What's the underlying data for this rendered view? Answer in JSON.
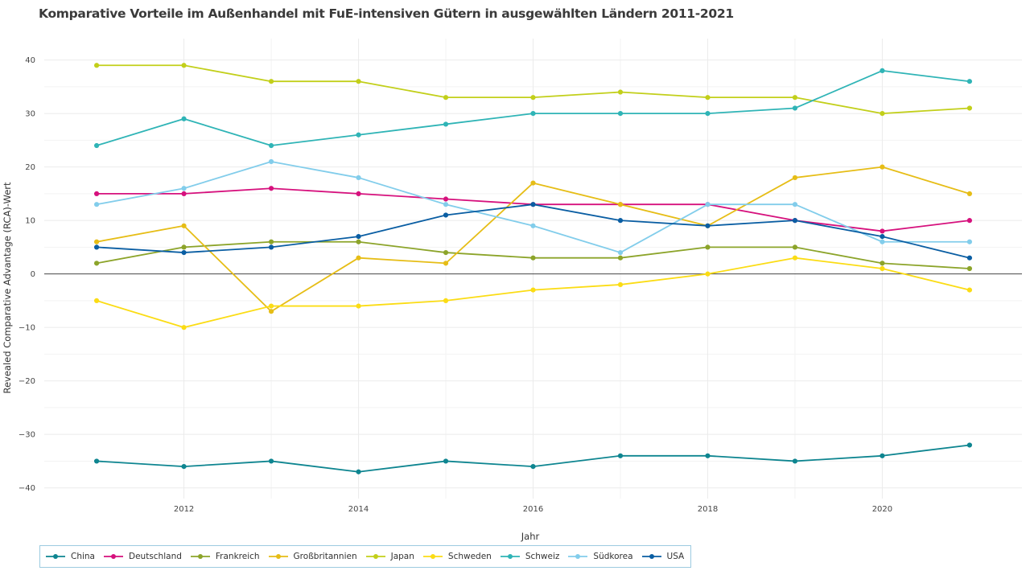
{
  "chart_data": {
    "type": "line",
    "title": "Komparative Vorteile im Außenhandel mit FuE-intensiven Gütern in ausgewählten Ländern 2011-2021",
    "xlabel": "Jahr",
    "ylabel": "Revealed Comparative Advantage (RCA)-Wert",
    "x": [
      2011,
      2012,
      2013,
      2014,
      2015,
      2016,
      2017,
      2018,
      2019,
      2020,
      2021
    ],
    "xlim": [
      2010.4,
      2021.6
    ],
    "ylim": [
      -42,
      44
    ],
    "xticks": [
      2012,
      2014,
      2016,
      2018,
      2020
    ],
    "yticks": [
      -40,
      -30,
      -20,
      -10,
      0,
      10,
      20,
      30,
      40
    ],
    "grid": true,
    "legend_position": "bottom-left",
    "series": [
      {
        "name": "China",
        "color": "#0e8590",
        "values": [
          -35,
          -36,
          -35,
          -37,
          -35,
          -36,
          -34,
          -34,
          -35,
          -34,
          -32
        ]
      },
      {
        "name": "Deutschland",
        "color": "#d6117d",
        "values": [
          15,
          15,
          16,
          15,
          14,
          13,
          13,
          13,
          10,
          8,
          10
        ]
      },
      {
        "name": "Frankreich",
        "color": "#8ca42a",
        "values": [
          2,
          5,
          6,
          6,
          4,
          3,
          3,
          5,
          5,
          2,
          1
        ]
      },
      {
        "name": "Großbritannien",
        "color": "#e6bd16",
        "values": [
          6,
          9,
          -7,
          3,
          2,
          17,
          13,
          9,
          18,
          20,
          15
        ]
      },
      {
        "name": "Japan",
        "color": "#c2cf1a",
        "values": [
          39,
          39,
          36,
          36,
          33,
          33,
          34,
          33,
          33,
          30,
          31
        ]
      },
      {
        "name": "Schweden",
        "color": "#fbdc14",
        "values": [
          -5,
          -10,
          -6,
          -6,
          -5,
          -3,
          -2,
          0,
          3,
          1,
          -3
        ]
      },
      {
        "name": "Schweiz",
        "color": "#2fb4b6",
        "values": [
          24,
          29,
          24,
          26,
          28,
          30,
          30,
          30,
          31,
          38,
          36
        ]
      },
      {
        "name": "Südkorea",
        "color": "#82cdeb",
        "values": [
          13,
          16,
          21,
          18,
          13,
          9,
          4,
          13,
          13,
          6,
          6
        ]
      },
      {
        "name": "USA",
        "color": "#0a5ea3",
        "values": [
          5,
          4,
          5,
          7,
          11,
          13,
          10,
          9,
          10,
          7,
          3
        ]
      }
    ]
  }
}
